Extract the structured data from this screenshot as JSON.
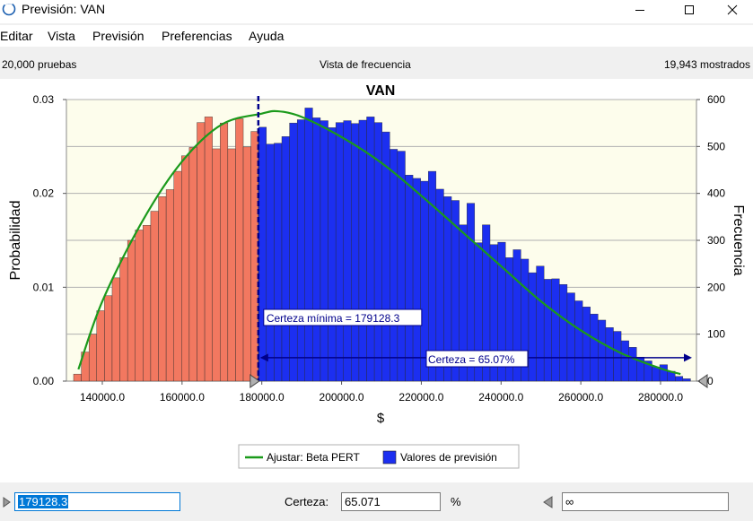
{
  "window": {
    "title": "Previsión: VAN"
  },
  "menu": [
    "Editar",
    "Vista",
    "Previsión",
    "Preferencias",
    "Ayuda"
  ],
  "info": {
    "trials": "20,000 pruebas",
    "view": "Vista de frecuencia",
    "shown": "19,943 mostrados"
  },
  "colors": {
    "fill_left": "#f27860",
    "fill_right": "#1c2ff0",
    "curve": "#1b9a1b",
    "plot_bg": "#fdfdec",
    "marker": "#00008b"
  },
  "chart_data": {
    "type": "bar",
    "title": "VAN",
    "xlabel": "$",
    "ylabel_left": "Probabilidad",
    "ylabel_right": "Frecuencia",
    "xlim": [
      131000,
      289000
    ],
    "ylim_left": [
      0,
      0.03
    ],
    "ylim_right": [
      0,
      600
    ],
    "grid": true,
    "x_ticks": [
      "140000.0",
      "160000.0",
      "180000.0",
      "200000.0",
      "220000.0",
      "240000.0",
      "260000.0",
      "280000.0"
    ],
    "y_left_ticks": [
      "0.03",
      "0.02",
      "0.01",
      "0.00"
    ],
    "y_right_ticks": [
      "600",
      "500",
      "400",
      "300",
      "200",
      "100",
      "0"
    ],
    "bin_start": 132800,
    "bin_width": 1934,
    "frequencies": [
      15,
      62,
      100,
      150,
      182,
      220,
      263,
      300,
      322,
      332,
      362,
      393,
      408,
      447,
      480,
      498,
      551,
      563,
      495,
      550,
      495,
      559,
      499,
      532,
      541,
      505,
      507,
      521,
      550,
      557,
      582,
      561,
      555,
      540,
      551,
      555,
      549,
      556,
      563,
      551,
      531,
      494,
      490,
      439,
      432,
      426,
      447,
      409,
      393,
      385,
      333,
      379,
      295,
      333,
      291,
      296,
      263,
      280,
      260,
      231,
      245,
      217,
      218,
      206,
      188,
      171,
      158,
      143,
      130,
      114,
      106,
      86,
      72,
      51,
      43,
      30,
      35,
      21,
      10,
      5
    ],
    "fit_curve": {
      "name": "Ajustar: Beta PERT",
      "x": [
        134000,
        140000,
        150000,
        160000,
        170000,
        180000,
        184000,
        190000,
        200000,
        210000,
        220000,
        230000,
        240000,
        250000,
        260000,
        270000,
        280000,
        285000
      ],
      "y": [
        25,
        170,
        340,
        468,
        547,
        570,
        575,
        563,
        520,
        465,
        395,
        320,
        245,
        170,
        108,
        60,
        27,
        15
      ]
    },
    "bar_series_name": "Valores de previsión",
    "certainty_min": 179128.3,
    "certainty_min_label": "Certeza mínima = 179128.3",
    "certainty_label": "Certeza = 65.07%"
  },
  "legend": {
    "curve_label": "Ajustar: Beta PERT",
    "bars_label": "Valores de previsión"
  },
  "bottom": {
    "left_value": "179128.3",
    "certainty_label": "Certeza:",
    "certainty_value": "65.071",
    "percent": "%",
    "right_value": "∞"
  }
}
